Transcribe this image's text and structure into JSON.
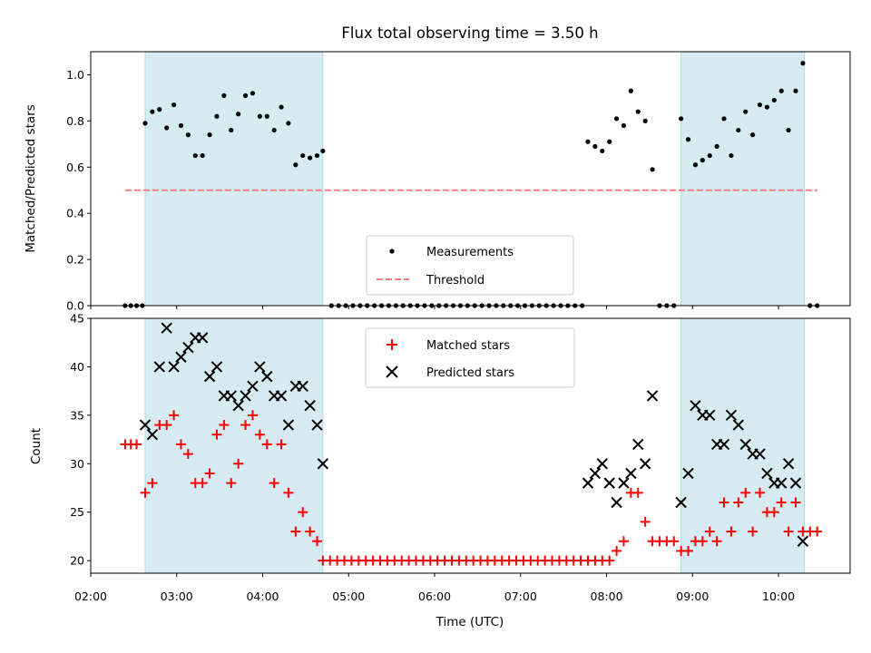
{
  "chart_data": [
    {
      "type": "scatter",
      "title": "Flux total observing time = 3.50 h",
      "xlabel": "",
      "ylabel": "Matched/Predicted stars",
      "xlim": [
        "02:00",
        "10:50"
      ],
      "ylim": [
        0,
        1.1
      ],
      "yticks": [
        "0.0",
        "0.2",
        "0.4",
        "0.6",
        "0.8",
        "1.0"
      ],
      "grid": false,
      "legend_position": "bottom-center",
      "shaded_intervals": [
        [
          "02:38",
          "04:42"
        ],
        [
          "08:52",
          "10:18"
        ]
      ],
      "series": [
        {
          "name": "Measurements",
          "kind": "scatter",
          "marker": "dot",
          "color": "#000000",
          "points": [
            [
              "02:24",
              0
            ],
            [
              "02:28",
              0
            ],
            [
              "02:32",
              0
            ],
            [
              "02:36",
              0
            ],
            [
              "02:38",
              0.79
            ],
            [
              "02:43",
              0.84
            ],
            [
              "02:48",
              0.85
            ],
            [
              "02:53",
              0.77
            ],
            [
              "02:58",
              0.87
            ],
            [
              "03:03",
              0.78
            ],
            [
              "03:08",
              0.74
            ],
            [
              "03:13",
              0.65
            ],
            [
              "03:18",
              0.65
            ],
            [
              "03:23",
              0.74
            ],
            [
              "03:28",
              0.82
            ],
            [
              "03:33",
              0.91
            ],
            [
              "03:38",
              0.76
            ],
            [
              "03:43",
              0.83
            ],
            [
              "03:48",
              0.91
            ],
            [
              "03:53",
              0.92
            ],
            [
              "03:58",
              0.82
            ],
            [
              "04:03",
              0.82
            ],
            [
              "04:08",
              0.76
            ],
            [
              "04:13",
              0.86
            ],
            [
              "04:18",
              0.79
            ],
            [
              "04:23",
              0.61
            ],
            [
              "04:28",
              0.65
            ],
            [
              "04:33",
              0.64
            ],
            [
              "04:38",
              0.65
            ],
            [
              "04:42",
              0.67
            ],
            [
              "04:48",
              0
            ],
            [
              "04:53",
              0
            ],
            [
              "04:58",
              0
            ],
            [
              "05:03",
              0
            ],
            [
              "05:08",
              0
            ],
            [
              "05:13",
              0
            ],
            [
              "05:18",
              0
            ],
            [
              "05:23",
              0
            ],
            [
              "05:28",
              0
            ],
            [
              "05:33",
              0
            ],
            [
              "05:38",
              0
            ],
            [
              "05:43",
              0
            ],
            [
              "05:48",
              0
            ],
            [
              "05:53",
              0
            ],
            [
              "05:58",
              0
            ],
            [
              "06:03",
              0
            ],
            [
              "06:08",
              0
            ],
            [
              "06:13",
              0
            ],
            [
              "06:18",
              0
            ],
            [
              "06:23",
              0
            ],
            [
              "06:28",
              0
            ],
            [
              "06:33",
              0
            ],
            [
              "06:38",
              0
            ],
            [
              "06:43",
              0
            ],
            [
              "06:48",
              0
            ],
            [
              "06:53",
              0
            ],
            [
              "06:58",
              0
            ],
            [
              "07:03",
              0
            ],
            [
              "07:08",
              0
            ],
            [
              "07:13",
              0
            ],
            [
              "07:18",
              0
            ],
            [
              "07:23",
              0
            ],
            [
              "07:28",
              0
            ],
            [
              "07:33",
              0
            ],
            [
              "07:38",
              0
            ],
            [
              "07:43",
              0
            ],
            [
              "07:47",
              0.71
            ],
            [
              "07:52",
              0.69
            ],
            [
              "07:57",
              0.67
            ],
            [
              "08:02",
              0.71
            ],
            [
              "08:07",
              0.81
            ],
            [
              "08:12",
              0.78
            ],
            [
              "08:17",
              0.93
            ],
            [
              "08:22",
              0.84
            ],
            [
              "08:27",
              0.8
            ],
            [
              "08:32",
              0.59
            ],
            [
              "08:37",
              0
            ],
            [
              "08:42",
              0
            ],
            [
              "08:47",
              0
            ],
            [
              "08:52",
              0.81
            ],
            [
              "08:57",
              0.72
            ],
            [
              "09:02",
              0.61
            ],
            [
              "09:07",
              0.63
            ],
            [
              "09:12",
              0.65
            ],
            [
              "09:17",
              0.69
            ],
            [
              "09:22",
              0.81
            ],
            [
              "09:27",
              0.65
            ],
            [
              "09:32",
              0.76
            ],
            [
              "09:37",
              0.84
            ],
            [
              "09:42",
              0.74
            ],
            [
              "09:47",
              0.87
            ],
            [
              "09:52",
              0.86
            ],
            [
              "09:57",
              0.89
            ],
            [
              "10:02",
              0.93
            ],
            [
              "10:07",
              0.76
            ],
            [
              "10:12",
              0.93
            ],
            [
              "10:17",
              1.05
            ],
            [
              "10:22",
              0
            ],
            [
              "10:27",
              0
            ]
          ]
        },
        {
          "name": "Threshold",
          "kind": "line",
          "style": "dashed",
          "color": "#f08080",
          "points": [
            [
              "02:24",
              0.5
            ],
            [
              "10:27",
              0.5
            ]
          ]
        }
      ]
    },
    {
      "type": "scatter",
      "title": "",
      "xlabel": "Time (UTC)",
      "ylabel": "Count",
      "xlim": [
        "02:00",
        "10:50"
      ],
      "xticks": [
        "02:00",
        "03:00",
        "04:00",
        "05:00",
        "06:00",
        "07:00",
        "08:00",
        "09:00",
        "10:00"
      ],
      "ylim": [
        18.7,
        45
      ],
      "yticks": [
        "20",
        "25",
        "30",
        "35",
        "40",
        "45"
      ],
      "grid": false,
      "legend_position": "top-center",
      "shaded_intervals": [
        [
          "02:38",
          "04:42"
        ],
        [
          "08:52",
          "10:18"
        ]
      ],
      "series": [
        {
          "name": "Matched stars",
          "kind": "scatter",
          "marker": "plus",
          "color": "#ff0000",
          "points": [
            [
              "02:24",
              32
            ],
            [
              "02:28",
              32
            ],
            [
              "02:32",
              32
            ],
            [
              "02:38",
              27
            ],
            [
              "02:43",
              28
            ],
            [
              "02:48",
              34
            ],
            [
              "02:53",
              34
            ],
            [
              "02:58",
              35
            ],
            [
              "03:03",
              32
            ],
            [
              "03:08",
              31
            ],
            [
              "03:13",
              28
            ],
            [
              "03:18",
              28
            ],
            [
              "03:23",
              29
            ],
            [
              "03:28",
              33
            ],
            [
              "03:33",
              34
            ],
            [
              "03:38",
              28
            ],
            [
              "03:43",
              30
            ],
            [
              "03:48",
              34
            ],
            [
              "03:53",
              35
            ],
            [
              "03:58",
              33
            ],
            [
              "04:03",
              32
            ],
            [
              "04:08",
              28
            ],
            [
              "04:13",
              32
            ],
            [
              "04:18",
              27
            ],
            [
              "04:23",
              23
            ],
            [
              "04:28",
              25
            ],
            [
              "04:33",
              23
            ],
            [
              "04:38",
              22
            ],
            [
              "04:42",
              20
            ],
            [
              "04:47",
              20
            ],
            [
              "04:52",
              20
            ],
            [
              "04:57",
              20
            ],
            [
              "05:02",
              20
            ],
            [
              "05:07",
              20
            ],
            [
              "05:12",
              20
            ],
            [
              "05:17",
              20
            ],
            [
              "05:22",
              20
            ],
            [
              "05:27",
              20
            ],
            [
              "05:32",
              20
            ],
            [
              "05:37",
              20
            ],
            [
              "05:42",
              20
            ],
            [
              "05:47",
              20
            ],
            [
              "05:52",
              20
            ],
            [
              "05:57",
              20
            ],
            [
              "06:02",
              20
            ],
            [
              "06:07",
              20
            ],
            [
              "06:12",
              20
            ],
            [
              "06:17",
              20
            ],
            [
              "06:22",
              20
            ],
            [
              "06:27",
              20
            ],
            [
              "06:32",
              20
            ],
            [
              "06:37",
              20
            ],
            [
              "06:42",
              20
            ],
            [
              "06:47",
              20
            ],
            [
              "06:52",
              20
            ],
            [
              "06:57",
              20
            ],
            [
              "07:02",
              20
            ],
            [
              "07:07",
              20
            ],
            [
              "07:12",
              20
            ],
            [
              "07:17",
              20
            ],
            [
              "07:22",
              20
            ],
            [
              "07:27",
              20
            ],
            [
              "07:32",
              20
            ],
            [
              "07:37",
              20
            ],
            [
              "07:42",
              20
            ],
            [
              "07:47",
              20
            ],
            [
              "07:52",
              20
            ],
            [
              "07:57",
              20
            ],
            [
              "08:02",
              20
            ],
            [
              "08:07",
              21
            ],
            [
              "08:12",
              22
            ],
            [
              "08:17",
              27
            ],
            [
              "08:22",
              27
            ],
            [
              "08:27",
              24
            ],
            [
              "08:32",
              22
            ],
            [
              "08:37",
              22
            ],
            [
              "08:42",
              22
            ],
            [
              "08:47",
              22
            ],
            [
              "08:52",
              21
            ],
            [
              "08:57",
              21
            ],
            [
              "09:02",
              22
            ],
            [
              "09:07",
              22
            ],
            [
              "09:12",
              23
            ],
            [
              "09:17",
              22
            ],
            [
              "09:22",
              26
            ],
            [
              "09:27",
              23
            ],
            [
              "09:32",
              26
            ],
            [
              "09:37",
              27
            ],
            [
              "09:42",
              23
            ],
            [
              "09:47",
              27
            ],
            [
              "09:52",
              25
            ],
            [
              "09:57",
              25
            ],
            [
              "10:02",
              26
            ],
            [
              "10:07",
              23
            ],
            [
              "10:12",
              26
            ],
            [
              "10:17",
              23
            ],
            [
              "10:22",
              23
            ],
            [
              "10:27",
              23
            ]
          ]
        },
        {
          "name": "Predicted stars",
          "kind": "scatter",
          "marker": "x",
          "color": "#000000",
          "points": [
            [
              "02:38",
              34
            ],
            [
              "02:43",
              33
            ],
            [
              "02:48",
              40
            ],
            [
              "02:53",
              44
            ],
            [
              "02:58",
              40
            ],
            [
              "03:03",
              41
            ],
            [
              "03:08",
              42
            ],
            [
              "03:13",
              43
            ],
            [
              "03:18",
              43
            ],
            [
              "03:23",
              39
            ],
            [
              "03:28",
              40
            ],
            [
              "03:33",
              37
            ],
            [
              "03:38",
              37
            ],
            [
              "03:43",
              36
            ],
            [
              "03:48",
              37
            ],
            [
              "03:53",
              38
            ],
            [
              "03:58",
              40
            ],
            [
              "04:03",
              39
            ],
            [
              "04:08",
              37
            ],
            [
              "04:13",
              37
            ],
            [
              "04:18",
              34
            ],
            [
              "04:23",
              38
            ],
            [
              "04:28",
              38
            ],
            [
              "04:33",
              36
            ],
            [
              "04:38",
              34
            ],
            [
              "04:42",
              30
            ],
            [
              "07:47",
              28
            ],
            [
              "07:52",
              29
            ],
            [
              "07:57",
              30
            ],
            [
              "08:02",
              28
            ],
            [
              "08:07",
              26
            ],
            [
              "08:12",
              28
            ],
            [
              "08:17",
              29
            ],
            [
              "08:22",
              32
            ],
            [
              "08:27",
              30
            ],
            [
              "08:32",
              37
            ],
            [
              "08:52",
              26
            ],
            [
              "08:57",
              29
            ],
            [
              "09:02",
              36
            ],
            [
              "09:07",
              35
            ],
            [
              "09:12",
              35
            ],
            [
              "09:17",
              32
            ],
            [
              "09:22",
              32
            ],
            [
              "09:27",
              35
            ],
            [
              "09:32",
              34
            ],
            [
              "09:37",
              32
            ],
            [
              "09:42",
              31
            ],
            [
              "09:47",
              31
            ],
            [
              "09:52",
              29
            ],
            [
              "09:57",
              28
            ],
            [
              "10:02",
              28
            ],
            [
              "10:07",
              30
            ],
            [
              "10:12",
              28
            ],
            [
              "10:17",
              22
            ]
          ]
        }
      ]
    }
  ]
}
